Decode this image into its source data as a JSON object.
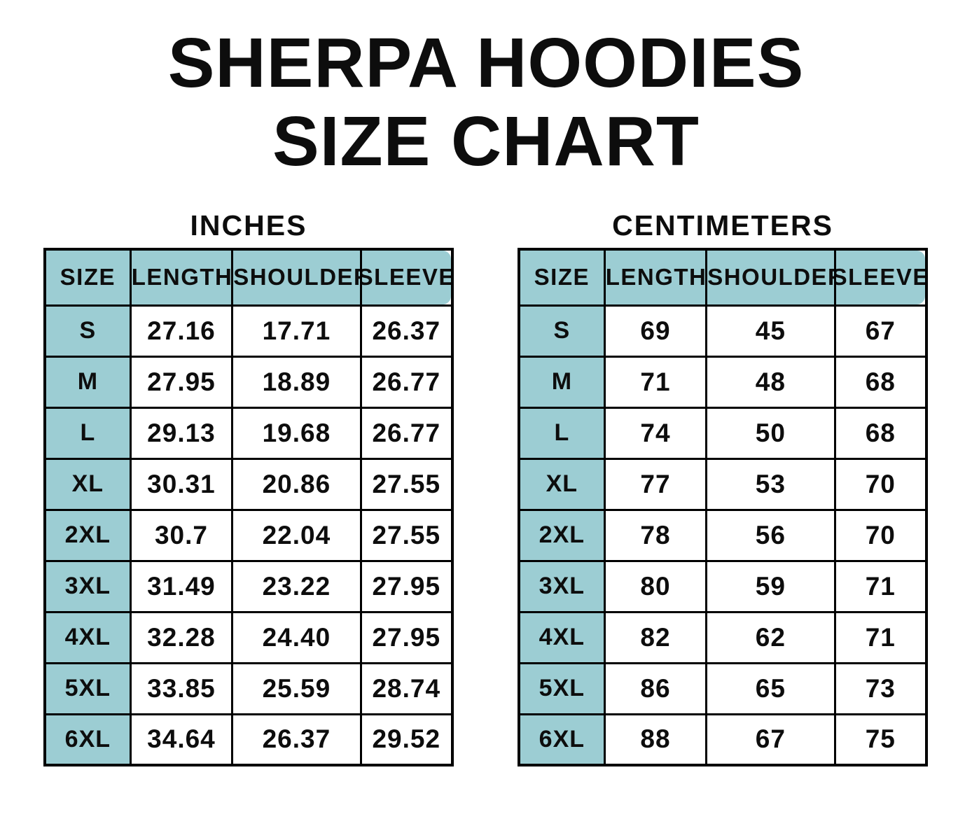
{
  "page": {
    "title_line1": "SHERPA HOODIES",
    "title_line2": "SIZE CHART"
  },
  "colors": {
    "header_fill": "#9ccdd3",
    "border": "#000000",
    "text": "#0d0d0d",
    "background": "#ffffff"
  },
  "chart_data": [
    {
      "type": "table",
      "title": "INCHES",
      "columns": [
        "SIZE",
        "LENGTH",
        "SHOULDER",
        "SLEEVE"
      ],
      "rows": [
        [
          "S",
          "27.16",
          "17.71",
          "26.37"
        ],
        [
          "M",
          "27.95",
          "18.89",
          "26.77"
        ],
        [
          "L",
          "29.13",
          "19.68",
          "26.77"
        ],
        [
          "XL",
          "30.31",
          "20.86",
          "27.55"
        ],
        [
          "2XL",
          "30.7",
          "22.04",
          "27.55"
        ],
        [
          "3XL",
          "31.49",
          "23.22",
          "27.95"
        ],
        [
          "4XL",
          "32.28",
          "24.40",
          "27.95"
        ],
        [
          "5XL",
          "33.85",
          "25.59",
          "28.74"
        ],
        [
          "6XL",
          "34.64",
          "26.37",
          "29.52"
        ]
      ]
    },
    {
      "type": "table",
      "title": "CENTIMETERS",
      "columns": [
        "SIZE",
        "LENGTH",
        "SHOULDER",
        "SLEEVE"
      ],
      "rows": [
        [
          "S",
          "69",
          "45",
          "67"
        ],
        [
          "M",
          "71",
          "48",
          "68"
        ],
        [
          "L",
          "74",
          "50",
          "68"
        ],
        [
          "XL",
          "77",
          "53",
          "70"
        ],
        [
          "2XL",
          "78",
          "56",
          "70"
        ],
        [
          "3XL",
          "80",
          "59",
          "71"
        ],
        [
          "4XL",
          "82",
          "62",
          "71"
        ],
        [
          "5XL",
          "86",
          "65",
          "73"
        ],
        [
          "6XL",
          "88",
          "67",
          "75"
        ]
      ]
    }
  ]
}
